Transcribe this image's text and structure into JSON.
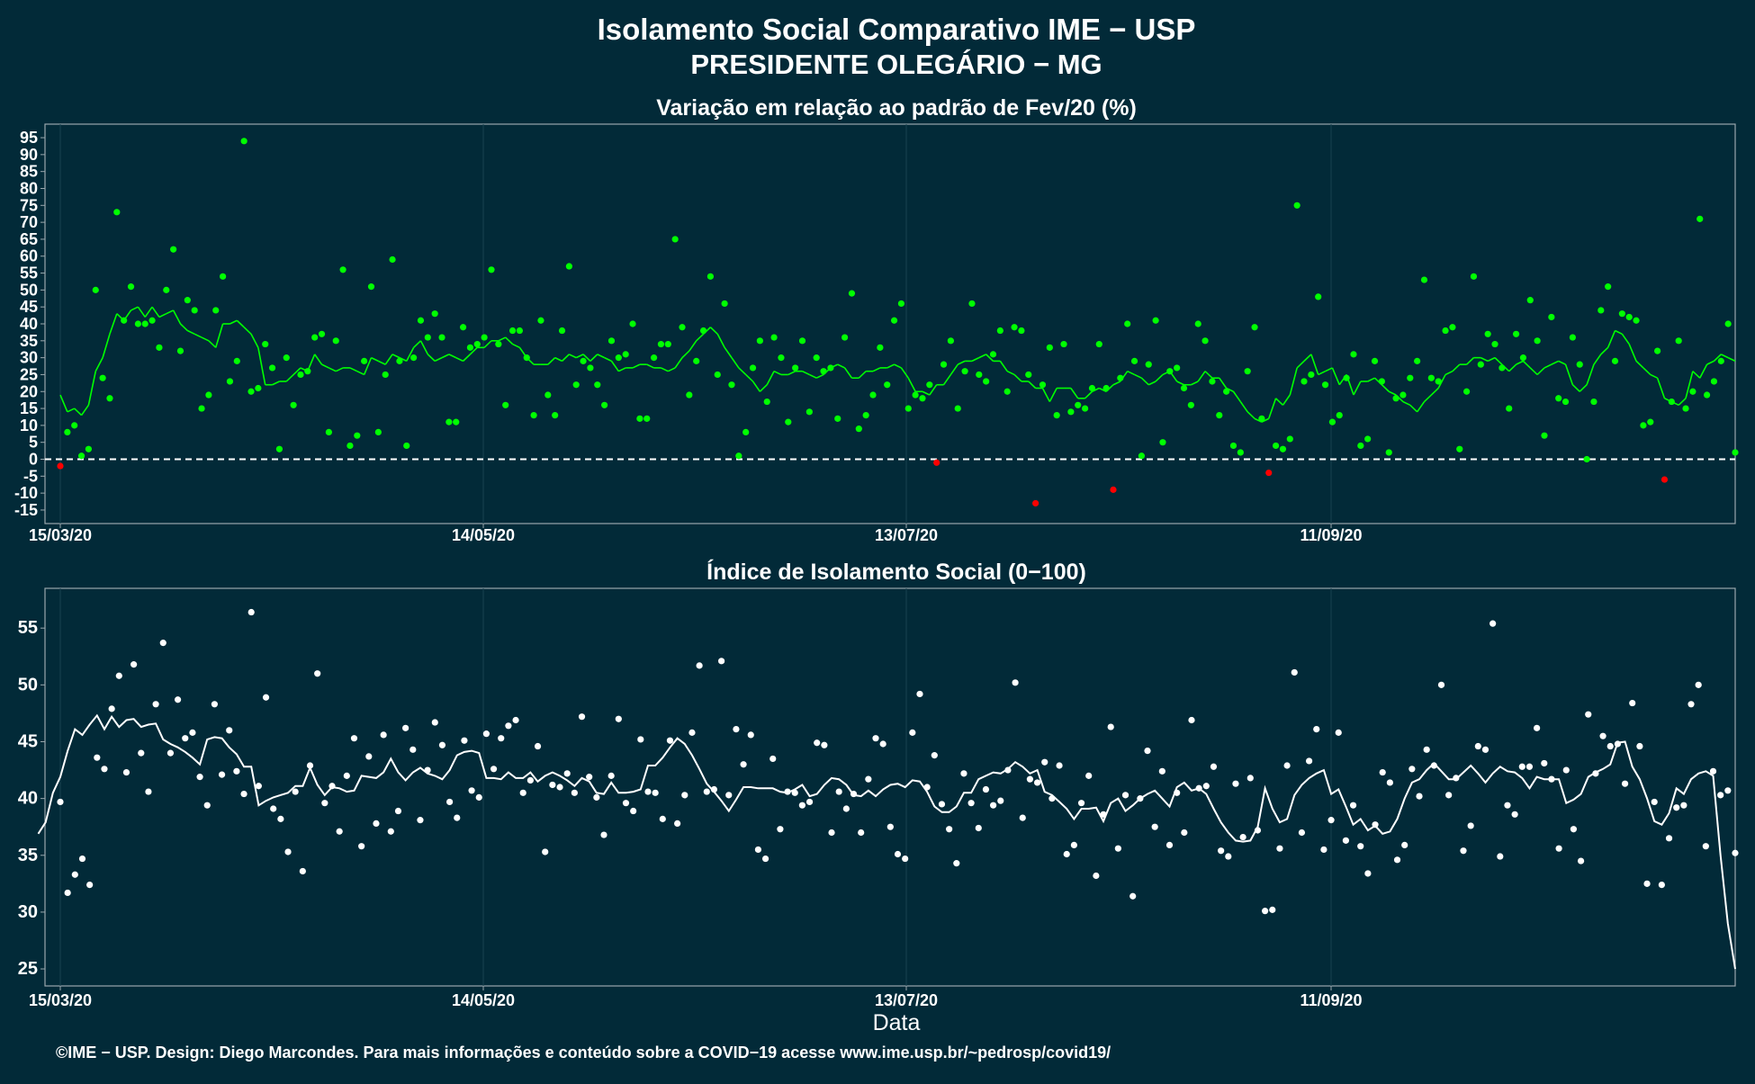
{
  "title_line1": "Isolamento Social Comparativo IME − USP",
  "title_line2": "PRESIDENTE OLEGÁRIO − MG",
  "xlabel": "Data",
  "footer": "©IME − USP. Design: Diego Marcondes. Para mais informações e conteúdo sobre a COVID−19 acesse www.ime.usp.br/~pedrosp/covid19/",
  "colors": {
    "background": "#022a38",
    "above_zero": "#00ff00",
    "below_zero": "#ff0000",
    "index_series": "#ffffff",
    "axis_text": "#ffffff",
    "panel_border": "#9aa7ad"
  },
  "chart_data": [
    {
      "type": "scatter",
      "title": "Variação em relação ao padrão de Fev/20 (%)",
      "x_tick_labels": [
        "15/03/20",
        "14/05/20",
        "13/07/20",
        "11/09/20"
      ],
      "y_ticks": [
        -15,
        -10,
        -5,
        0,
        5,
        10,
        15,
        20,
        25,
        30,
        35,
        40,
        45,
        50,
        55,
        60,
        65,
        70,
        75,
        80,
        85,
        90,
        95
      ],
      "x_range": [
        "15/03/20",
        "05/11/20"
      ],
      "ylim": [
        -19,
        99
      ],
      "zero_line": true,
      "grid": true,
      "series": [
        {
          "kind": "daily points",
          "values": [
            -2,
            8,
            10,
            1,
            3,
            50,
            24,
            18,
            73,
            41,
            51,
            40,
            40,
            41,
            33,
            50,
            62,
            32,
            47,
            44,
            15,
            19,
            44,
            54,
            23,
            29,
            94,
            20,
            21,
            34,
            27,
            3,
            30,
            16,
            25,
            26,
            36,
            37,
            8,
            35,
            56,
            4,
            7,
            29,
            51,
            8,
            25,
            59,
            29,
            4,
            30,
            41,
            36,
            43,
            36,
            11,
            11,
            39,
            33,
            34,
            36,
            56,
            34,
            16,
            38,
            38,
            30,
            13,
            41,
            19,
            13,
            38,
            57,
            22,
            29,
            27,
            22,
            16,
            35,
            30,
            31,
            40,
            12,
            12,
            30,
            34,
            34,
            65,
            39,
            19,
            29,
            38,
            54,
            25,
            46,
            22,
            1,
            8,
            27,
            35,
            17,
            36,
            30,
            11,
            27,
            35,
            14,
            30,
            26,
            27,
            12,
            36,
            49,
            9,
            13,
            19,
            33,
            22,
            41,
            46,
            15,
            19,
            18,
            22,
            -1,
            28,
            35,
            15,
            26,
            46,
            25,
            23,
            31,
            38,
            20,
            39,
            38,
            25,
            -13,
            22,
            33,
            13,
            34,
            14,
            16,
            15,
            21,
            34,
            21,
            -9,
            24,
            40,
            29,
            1,
            28,
            41,
            5,
            26,
            27,
            21,
            16,
            40,
            35,
            23,
            13,
            20,
            4,
            2,
            26,
            39,
            12,
            -4,
            4,
            3,
            6,
            75,
            23,
            25,
            48,
            22,
            11,
            13,
            24,
            31,
            4,
            6,
            29,
            23,
            2,
            18,
            19,
            24,
            29,
            53,
            24,
            23,
            38,
            39,
            3,
            20,
            54,
            28,
            37,
            34,
            27,
            15,
            37,
            30,
            47,
            35,
            7,
            42,
            18,
            17,
            36,
            28,
            0,
            17,
            44,
            51,
            29,
            43,
            42,
            41,
            10,
            11,
            32,
            -6,
            17,
            35,
            15,
            20,
            71,
            19,
            23,
            29,
            40,
            2
          ]
        },
        {
          "kind": "7-day moving average",
          "values": [
            19,
            14,
            15,
            13,
            16,
            26,
            30,
            37,
            43,
            41,
            44,
            45,
            42,
            45,
            42,
            43,
            44,
            40,
            38,
            37,
            36,
            35,
            33,
            40,
            40,
            41,
            39,
            37,
            33,
            22,
            22,
            23,
            23,
            25,
            27,
            26,
            31,
            28,
            27,
            26,
            27,
            27,
            26,
            25,
            30,
            29,
            28,
            31,
            30,
            29,
            33,
            35,
            31,
            29,
            30,
            31,
            30,
            29,
            31,
            33,
            33,
            35,
            35,
            36,
            34,
            33,
            30,
            28,
            28,
            28,
            30,
            29,
            31,
            30,
            31,
            29,
            31,
            30,
            29,
            26,
            27,
            27,
            28,
            28,
            27,
            27,
            26,
            27,
            30,
            32,
            35,
            37,
            39,
            37,
            33,
            30,
            27,
            25,
            23,
            20,
            22,
            26,
            25,
            25,
            26,
            26,
            25,
            24,
            25,
            27,
            28,
            27,
            24,
            24,
            26,
            26,
            27,
            27,
            28,
            27,
            24,
            20,
            20,
            19,
            22,
            22,
            25,
            28,
            29,
            29,
            30,
            31,
            29,
            29,
            26,
            25,
            23,
            23,
            21,
            21,
            17,
            21,
            21,
            21,
            18,
            18,
            20,
            21,
            20,
            22,
            23,
            26,
            25,
            24,
            22,
            23,
            25,
            26,
            23,
            22,
            22,
            23,
            26,
            24,
            24,
            21,
            20,
            17,
            14,
            12,
            11,
            12,
            18,
            16,
            19,
            27,
            29,
            31,
            25,
            26,
            27,
            22,
            25,
            19,
            23,
            23,
            24,
            22,
            20,
            19,
            17,
            16,
            14,
            17,
            19,
            21,
            25,
            26,
            28,
            28,
            30,
            30,
            29,
            30,
            28,
            26,
            28,
            29,
            27,
            25,
            27,
            28,
            29,
            28,
            22,
            20,
            22,
            28,
            31,
            33,
            38,
            37,
            34,
            29,
            27,
            25,
            24,
            18,
            17,
            16,
            18,
            26,
            24,
            28,
            29,
            31,
            30,
            29
          ]
        }
      ]
    },
    {
      "type": "scatter",
      "title": "Índice de Isolamento Social (0−100)",
      "x_tick_labels": [
        "15/03/20",
        "14/05/20",
        "13/07/20",
        "11/09/20"
      ],
      "y_ticks": [
        25,
        30,
        35,
        40,
        45,
        50,
        55
      ],
      "x_range": [
        "15/03/20",
        "05/11/20"
      ],
      "ylim": [
        23.5,
        58.5
      ],
      "grid": true,
      "series": [
        {
          "kind": "daily points",
          "values": [
            39.7,
            31.7,
            33.3,
            34.7,
            32.4,
            43.6,
            42.6,
            47.9,
            50.8,
            42.3,
            51.8,
            44.0,
            40.6,
            48.3,
            53.7,
            44.0,
            48.7,
            45.3,
            45.8,
            41.9,
            39.4,
            48.3,
            42.1,
            46.0,
            42.4,
            40.4,
            56.4,
            41.1,
            48.9,
            39.1,
            38.2,
            35.3,
            40.6,
            33.6,
            42.9,
            51.0,
            39.6,
            41.1,
            37.1,
            42.0,
            45.3,
            35.8,
            43.7,
            37.8,
            45.6,
            37.1,
            38.9,
            46.2,
            44.3,
            38.1,
            42.5,
            46.7,
            44.7,
            39.7,
            38.3,
            45.1,
            40.7,
            40.1,
            45.7,
            42.6,
            45.3,
            46.4,
            46.9,
            40.5,
            41.6,
            44.6,
            35.3,
            41.2,
            41.0,
            42.2,
            40.5,
            47.2,
            41.9,
            40.1,
            36.8,
            42.0,
            47.0,
            39.6,
            38.9,
            45.2,
            40.6,
            40.5,
            38.2,
            45.1,
            37.8,
            40.3,
            45.8,
            51.7,
            40.6,
            40.8,
            52.1,
            40.3,
            46.1,
            43.0,
            45.6,
            35.5,
            34.7,
            43.5,
            37.3,
            40.6,
            40.5,
            39.4,
            39.7,
            44.9,
            44.7,
            37.0,
            40.6,
            39.1,
            40.4,
            37.0,
            41.7,
            45.3,
            44.8,
            37.5,
            35.1,
            34.7,
            45.8,
            49.2,
            41.0,
            43.8,
            39.5,
            37.3,
            34.3,
            42.2,
            39.6,
            37.4,
            40.8,
            39.4,
            39.8,
            42.5,
            50.2,
            38.3,
            41.7,
            41.4,
            43.2,
            40.0,
            42.9,
            35.1,
            35.9,
            39.6,
            42.0,
            33.2,
            38.6,
            46.3,
            35.6,
            40.3,
            31.4,
            40.0,
            44.2,
            37.5,
            42.4,
            35.9,
            40.5,
            37.0,
            46.9,
            40.9,
            41.1,
            42.8,
            35.4,
            34.9,
            41.3,
            36.6,
            41.8,
            37.2,
            30.1,
            30.2,
            35.6,
            42.9,
            51.1,
            37.0,
            43.3,
            46.1,
            35.5,
            38.1,
            45.8,
            36.3,
            39.4,
            35.8,
            33.4,
            37.7,
            42.3,
            41.4,
            34.6,
            35.9,
            42.6,
            40.2,
            44.3,
            42.9,
            50.0,
            40.3,
            41.8,
            35.4,
            37.6,
            44.6,
            44.3,
            55.4,
            34.9,
            39.4,
            38.6,
            42.8,
            42.8,
            46.2,
            43.1,
            41.7,
            35.6,
            42.5,
            37.3,
            34.5,
            47.4,
            42.2,
            45.5,
            44.6,
            44.8,
            41.3,
            48.4,
            44.6,
            32.5,
            39.7,
            32.4,
            36.5,
            39.2,
            39.4,
            48.3,
            50.0,
            35.8,
            42.4,
            40.3,
            40.7,
            35.2
          ]
        },
        {
          "kind": "7-day moving average",
          "values": [
            36.9,
            37.9,
            40.5,
            41.9,
            44.2,
            46.1,
            45.6,
            46.5,
            47.3,
            46.1,
            47.2,
            46.3,
            46.9,
            47.0,
            46.3,
            46.5,
            46.6,
            45.2,
            44.8,
            44.5,
            44.1,
            43.6,
            43.0,
            45.2,
            45.4,
            45.3,
            44.5,
            43.9,
            42.8,
            42.8,
            39.4,
            39.8,
            40.1,
            40.3,
            40.5,
            41.1,
            41.1,
            42.7,
            41.2,
            40.3,
            41.0,
            40.9,
            40.6,
            40.7,
            42.0,
            41.9,
            41.8,
            42.3,
            43.5,
            42.3,
            41.6,
            42.3,
            42.7,
            42.2,
            42.0,
            41.7,
            42.5,
            43.8,
            44.1,
            44.2,
            44.0,
            41.8,
            41.8,
            41.7,
            42.3,
            41.8,
            41.8,
            42.3,
            41.5,
            42.0,
            42.3,
            42.0,
            41.6,
            41.1,
            41.8,
            41.5,
            40.5,
            40.4,
            41.4,
            40.5,
            40.5,
            40.6,
            40.8,
            42.9,
            42.9,
            43.6,
            44.5,
            45.3,
            44.8,
            43.8,
            42.6,
            41.3,
            40.6,
            39.8,
            38.9,
            39.9,
            41.0,
            41.0,
            40.9,
            40.9,
            40.9,
            40.6,
            40.5,
            40.8,
            41.2,
            40.2,
            40.4,
            41.2,
            41.8,
            41.7,
            41.2,
            40.3,
            40.2,
            40.7,
            40.2,
            40.8,
            41.2,
            41.3,
            41.0,
            41.6,
            41.5,
            40.6,
            39.3,
            38.8,
            38.8,
            39.3,
            40.5,
            40.5,
            41.7,
            42.0,
            42.3,
            42.2,
            42.6,
            43.2,
            42.8,
            42.2,
            42.5,
            40.6,
            40.3,
            39.7,
            39.1,
            38.2,
            39.1,
            39.1,
            39.2,
            38.0,
            39.6,
            40.0,
            38.9,
            39.4,
            40.0,
            40.4,
            40.7,
            40.0,
            39.3,
            41.0,
            41.4,
            40.7,
            40.9,
            40.4,
            39.1,
            37.9,
            37.0,
            36.3,
            36.2,
            36.3,
            37.5,
            40.9,
            39.1,
            37.9,
            38.2,
            40.3,
            41.2,
            41.8,
            42.2,
            42.5,
            40.4,
            40.8,
            39.3,
            37.7,
            38.2,
            37.2,
            37.6,
            36.9,
            37.1,
            38.2,
            40.0,
            41.4,
            41.7,
            42.5,
            43.1,
            42.4,
            41.7,
            41.7,
            42.3,
            42.9,
            42.2,
            41.4,
            42.2,
            42.8,
            42.4,
            42.3,
            41.8,
            40.9,
            41.9,
            41.7,
            41.7,
            41.7,
            39.6,
            39.9,
            40.4,
            41.9,
            42.3,
            42.6,
            43.0,
            44.9,
            45.0,
            42.8,
            41.7,
            40.0,
            38.0,
            37.7,
            38.7,
            40.9,
            40.4,
            41.7,
            42.2,
            42.4,
            42.0,
            35.0,
            29.0,
            25.0
          ]
        }
      ]
    }
  ]
}
